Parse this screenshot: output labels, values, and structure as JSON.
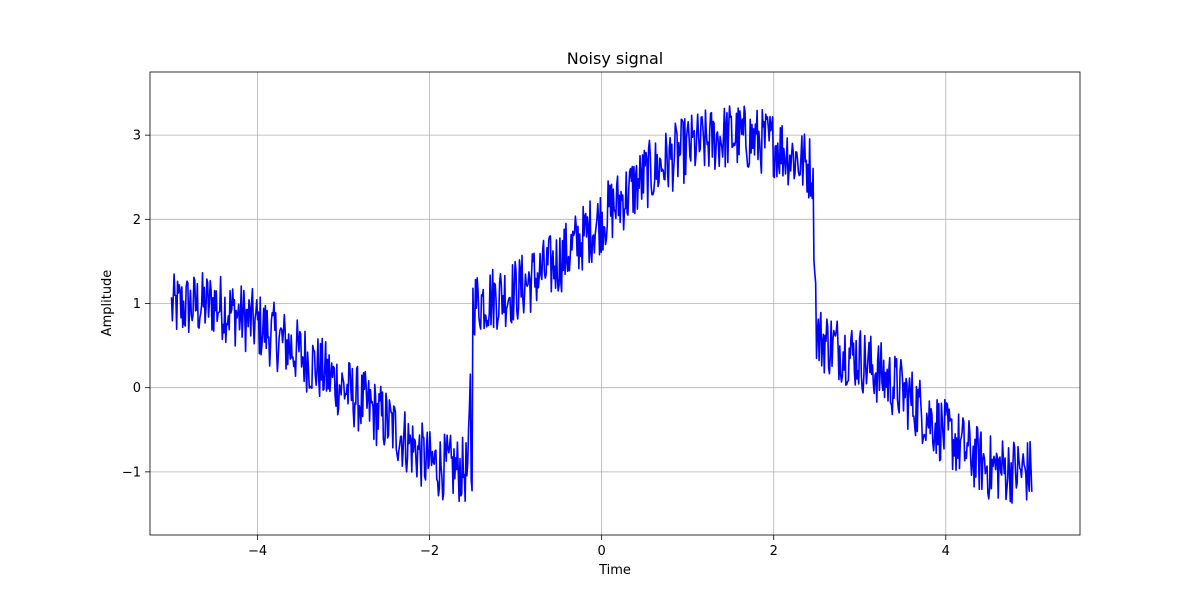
{
  "chart_data": {
    "type": "line",
    "title": "Noisy signal",
    "xlabel": "Time",
    "ylabel": "Amplitude",
    "xlim": [
      -5.25,
      5.56
    ],
    "ylim": [
      -1.75,
      3.75
    ],
    "xticks": [
      -4,
      -2,
      0,
      2,
      4
    ],
    "yticks": [
      -1,
      0,
      1,
      2,
      3
    ],
    "xtick_labels": [
      "−4",
      "−2",
      "0",
      "2",
      "4"
    ],
    "ytick_labels": [
      "−1",
      "0",
      "1",
      "2",
      "3"
    ],
    "grid": true,
    "series": [
      {
        "name": "Noisy signal",
        "color": "#0000ff",
        "x_start": -5.0,
        "x_end": 5.0,
        "num_points": 1000,
        "description": "Approximately sin(t) + 0.5*sign(sin(2*pi*t/8)) + uniform noise in [-0.4, 0.4]; piecewise: jumps at t=-1.5 (from about -1.3 up to about 1.0) and at t=2.5 (from about 2.6 down to about 0.5)",
        "noise_amplitude": 0.4,
        "anchor_x": [
          -5.0,
          -4.5,
          -4.0,
          -3.5,
          -3.0,
          -2.5,
          -2.0,
          -1.55,
          -1.5,
          -1.0,
          -0.5,
          0.0,
          0.5,
          1.0,
          1.5,
          2.0,
          2.45,
          2.5,
          3.0,
          3.5,
          4.0,
          4.5,
          5.0
        ],
        "anchor_y": [
          0.95,
          1.0,
          0.75,
          0.4,
          0.0,
          -0.4,
          -0.9,
          -1.0,
          1.0,
          1.15,
          1.5,
          2.0,
          2.5,
          2.85,
          3.0,
          2.9,
          2.6,
          0.6,
          0.35,
          -0.05,
          -0.55,
          -0.95,
          -1.0
        ]
      }
    ]
  }
}
